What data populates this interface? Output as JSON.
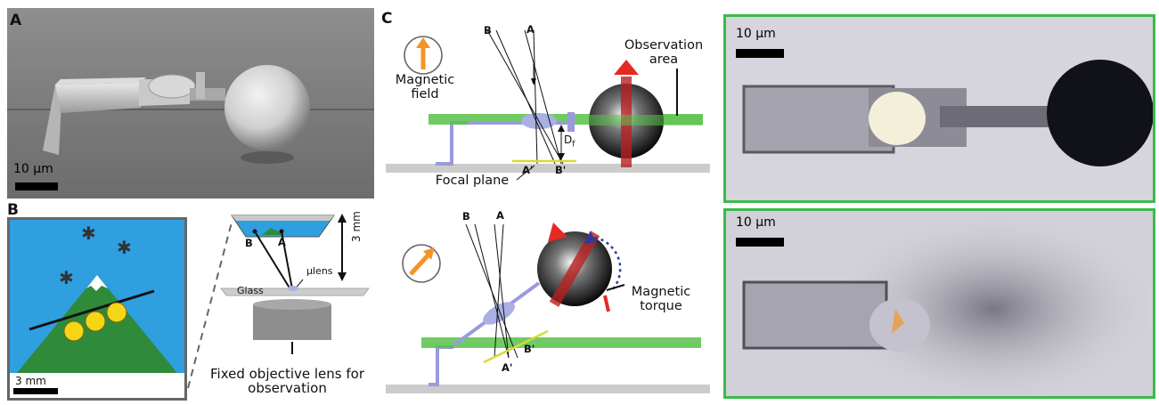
{
  "panels": {
    "a": "A",
    "b": "B",
    "c": "C"
  },
  "panel_a": {
    "scale_bar": "10 µm"
  },
  "panel_b": {
    "scale_bar": "3 mm",
    "height_label": "3 mm",
    "lens_label": "µlens",
    "glass_label": "Glass",
    "point_b": "B",
    "point_a": "A",
    "objective_label": "Fixed objective lens for observation"
  },
  "panel_c": {
    "top": {
      "field_label": "Magnetic field",
      "ray_b": "B",
      "ray_a": "A",
      "observation_label": "Observation area",
      "df_label": "D",
      "df_sub": "f",
      "img_a": "A'",
      "img_b": "B'",
      "focal_label": "Focal plane"
    },
    "bottom": {
      "ray_b": "B",
      "ray_a": "A",
      "torque_label": "Magnetic torque",
      "img_a": "A'",
      "img_b": "B'"
    },
    "photo_top_scale": "10 µm",
    "photo_bottom_scale": "10 µm"
  },
  "colors": {
    "green_frame": "#3cb94a",
    "axle": "#9a9ade",
    "lens": "#aab0e4",
    "glass_plate": "#cccccc",
    "arrow_orange": "#f39426",
    "arrow_red": "#e52a24",
    "sky_blue": "#2f9fe0"
  }
}
